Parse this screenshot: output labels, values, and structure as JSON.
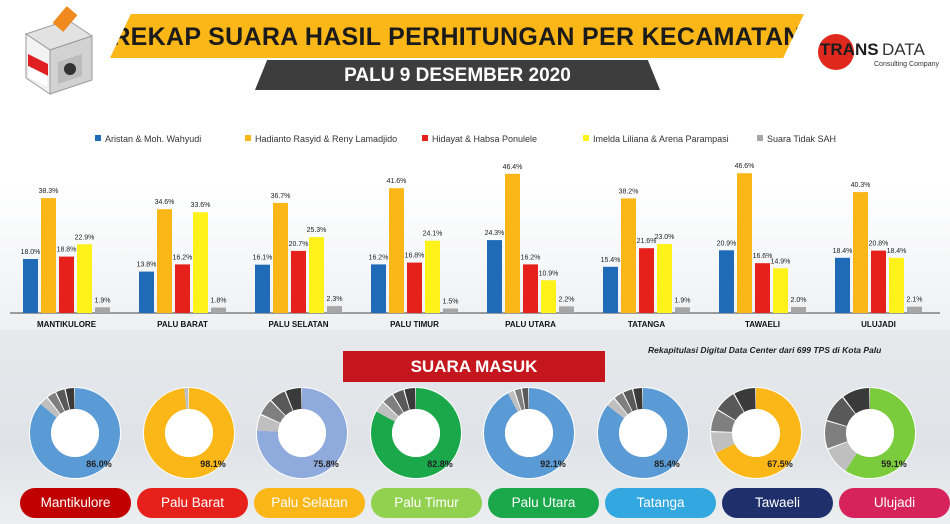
{
  "header": {
    "title": "REKAP SUARA HASIL PERHITUNGAN PER KECAMATAN",
    "date": "PALU 9 DESEMBER 2020"
  },
  "logo": {
    "trans": "TRANS",
    "data": "DATA",
    "sub": "Consulting Company"
  },
  "colors": {
    "accent": "#fbb617",
    "red": "#c5161d",
    "dark": "#3d3d3d"
  },
  "chart_data": [
    {
      "type": "bar",
      "categories": [
        "MANTIKULORE",
        "PALU BARAT",
        "PALU SELATAN",
        "PALU TIMUR",
        "PALU UTARA",
        "TATANGA",
        "TAWAELI",
        "ULUJADI"
      ],
      "series": [
        {
          "name": "Aristan & Moh. Wahyudi",
          "color": "#1f6bb8",
          "values": [
            18.0,
            13.8,
            16.1,
            16.2,
            24.3,
            15.4,
            20.9,
            18.4
          ],
          "labels": [
            "18.0%",
            "13.8%",
            "16.1%",
            "16.2%",
            "24.3%",
            "15.4%",
            "20.9%",
            "18.4%"
          ]
        },
        {
          "name": "Hadianto Rasyid & Reny Lamadjido",
          "color": "#fbb617",
          "values": [
            38.3,
            34.6,
            36.7,
            41.6,
            46.4,
            38.2,
            46.6,
            40.3
          ],
          "labels": [
            "38.3%",
            "34.6%",
            "36.7%",
            "41.6%",
            "46.4%",
            "38.2%",
            "46.6%",
            "40.3%"
          ]
        },
        {
          "name": "Hidayat & Habsa Ponulele",
          "color": "#e6201a",
          "values": [
            18.8,
            16.2,
            20.7,
            16.8,
            16.2,
            21.6,
            16.6,
            20.8
          ],
          "labels": [
            "18.8%",
            "16.2%",
            "20.7%",
            "16.8%",
            "16.2%",
            "21.6%",
            "16.6%",
            "20.8%"
          ]
        },
        {
          "name": "Imelda Liliana & Arena Parampasi",
          "color": "#fff21a",
          "values": [
            22.9,
            33.6,
            25.3,
            24.1,
            10.9,
            23.0,
            14.9,
            18.4
          ],
          "labels": [
            "22.9%",
            "33.6%",
            "25.3%",
            "24.1%",
            "10.9%",
            "23.0%",
            "14.9%",
            "18.4%"
          ]
        },
        {
          "name": "Suara Tidak SAH",
          "color": "#a6a6a6",
          "values": [
            1.9,
            1.8,
            2.3,
            1.5,
            2.2,
            1.9,
            2.0,
            2.1
          ],
          "labels": [
            "1.9%",
            "1.8%",
            "2.3%",
            "1.5%",
            "2.2%",
            "1.9%",
            "2.0%",
            "2.1%"
          ]
        }
      ],
      "ylim": [
        0,
        50
      ],
      "legend_placement": "top"
    },
    {
      "type": "pie",
      "title": "SUARA MASUK",
      "slices": [
        {
          "name": "Mantikulore",
          "value": 86.0,
          "label": "86.0%",
          "color": "#5b9bd5",
          "pill_color": "#c00000"
        },
        {
          "name": "Palu Barat",
          "value": 98.1,
          "label": "98.1%",
          "color": "#fbb617",
          "pill_color": "#e6201a"
        },
        {
          "name": "Palu Selatan",
          "value": 75.8,
          "label": "75.8%",
          "color": "#8faadc",
          "pill_color": "#fbb617"
        },
        {
          "name": "Palu Timur",
          "value": 82.8,
          "label": "82.8%",
          "color": "#1aa84b",
          "pill_color": "#92d050"
        },
        {
          "name": "Palu Utara",
          "value": 92.1,
          "label": "92.1%",
          "color": "#5b9bd5",
          "pill_color": "#1aa84b"
        },
        {
          "name": "Tatanga",
          "value": 85.4,
          "label": "85.4%",
          "color": "#5b9bd5",
          "pill_color": "#33a7e0"
        },
        {
          "name": "Tawaeli",
          "value": 67.5,
          "label": "67.5%",
          "color": "#fbb617",
          "pill_color": "#1f2f6b"
        },
        {
          "name": "Ulujadi",
          "value": 59.1,
          "label": "59.1%",
          "color": "#7bcc3c",
          "pill_color": "#d6235c"
        }
      ]
    }
  ],
  "footnote": "Rekapitulasi Digital Data Center dari 699 TPS di Kota Palu"
}
